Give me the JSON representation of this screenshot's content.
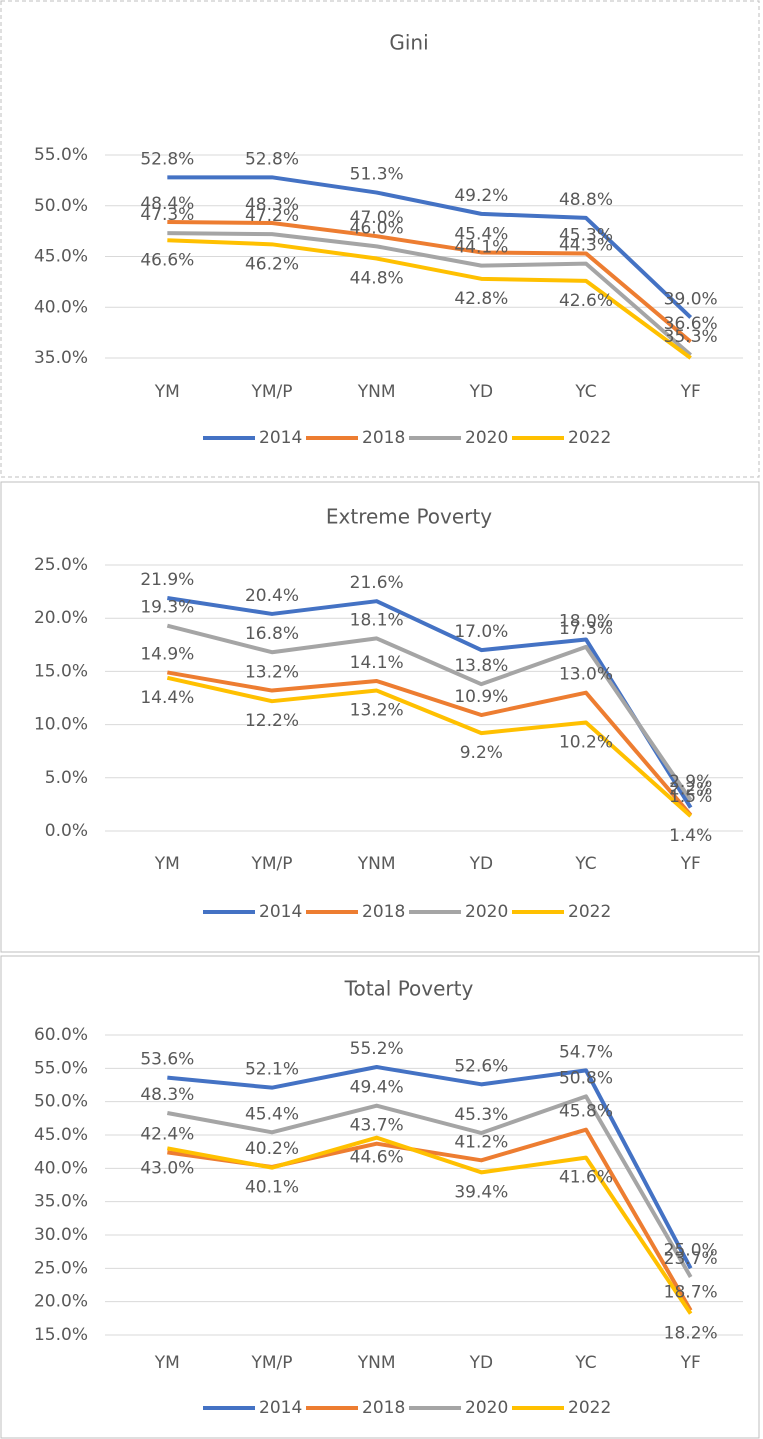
{
  "chart_data": [
    {
      "type": "line",
      "title": "Gini",
      "categories": [
        "YM",
        "YM/P",
        "YNM",
        "YD",
        "YC",
        "YF"
      ],
      "series": [
        {
          "name": "2014",
          "color": "#4472c4",
          "values": [
            52.8,
            52.8,
            51.3,
            49.2,
            48.8,
            39.0
          ],
          "value_labels": [
            "52.8%",
            "52.8%",
            "51.3%",
            "49.2%",
            "48.8%",
            "39.0%"
          ]
        },
        {
          "name": "2018",
          "color": "#ed7d31",
          "values": [
            48.4,
            48.3,
            47.0,
            45.4,
            45.3,
            36.6
          ],
          "value_labels": [
            "48.4%",
            "48.3%",
            "47.0%",
            "45.4%",
            "45.3%",
            "36.6%"
          ]
        },
        {
          "name": "2020",
          "color": "#a5a5a5",
          "values": [
            47.3,
            47.2,
            46.0,
            44.1,
            44.3,
            35.3
          ],
          "value_labels": [
            "47.3%",
            "47.2%",
            "46.0%",
            "44.1%",
            "44.3%",
            "35.3%"
          ]
        },
        {
          "name": "2022",
          "color": "#ffc000",
          "values": [
            46.6,
            46.2,
            44.8,
            42.8,
            42.6,
            35.0
          ],
          "value_labels": [
            "46.6%",
            "46.2%",
            "44.8%",
            "42.8%",
            "42.6%",
            null
          ]
        }
      ],
      "ylim": [
        35,
        55
      ],
      "yticks": [
        {
          "value": 35,
          "label": "35.0%"
        },
        {
          "value": 40,
          "label": "40.0%"
        },
        {
          "value": 45,
          "label": "45.0%"
        },
        {
          "value": 50,
          "label": "50.0%"
        },
        {
          "value": 55,
          "label": "55.0%"
        }
      ],
      "grid": true,
      "legend": "bottom"
    },
    {
      "type": "line",
      "title": "Extreme Poverty",
      "categories": [
        "YM",
        "YM/P",
        "YNM",
        "YD",
        "YC",
        "YF"
      ],
      "series": [
        {
          "name": "2014",
          "color": "#4472c4",
          "values": [
            21.9,
            20.4,
            21.6,
            17.0,
            18.0,
            2.2
          ],
          "value_labels": [
            "21.9%",
            "20.4%",
            "21.6%",
            "17.0%",
            "18.0%",
            "2.2%"
          ]
        },
        {
          "name": "2018",
          "color": "#ed7d31",
          "values": [
            14.9,
            13.2,
            14.1,
            10.9,
            13.0,
            1.5
          ],
          "value_labels": [
            "14.9%",
            "13.2%",
            "14.1%",
            "10.9%",
            "13.0%",
            "1.5%"
          ]
        },
        {
          "name": "2020",
          "color": "#a5a5a5",
          "values": [
            19.3,
            16.8,
            18.1,
            13.8,
            17.3,
            2.9
          ],
          "value_labels": [
            "19.3%",
            "16.8%",
            "18.1%",
            "13.8%",
            "17.3%",
            "2.9%"
          ]
        },
        {
          "name": "2022",
          "color": "#ffc000",
          "values": [
            14.4,
            12.2,
            13.2,
            9.2,
            10.2,
            1.4
          ],
          "value_labels": [
            "14.4%",
            "12.2%",
            "13.2%",
            "9.2%",
            "10.2%",
            "1.4%"
          ]
        }
      ],
      "ylim": [
        0,
        25
      ],
      "yticks": [
        {
          "value": 0,
          "label": "0.0%"
        },
        {
          "value": 5,
          "label": "5.0%"
        },
        {
          "value": 10,
          "label": "10.0%"
        },
        {
          "value": 15,
          "label": "15.0%"
        },
        {
          "value": 20,
          "label": "20.0%"
        },
        {
          "value": 25,
          "label": "25.0%"
        }
      ],
      "grid": true,
      "legend": "bottom"
    },
    {
      "type": "line",
      "title": "Total Poverty",
      "categories": [
        "YM",
        "YM/P",
        "YNM",
        "YD",
        "YC",
        "YF"
      ],
      "series": [
        {
          "name": "2014",
          "color": "#4472c4",
          "values": [
            53.6,
            52.1,
            55.2,
            52.6,
            54.7,
            25.0
          ],
          "value_labels": [
            "53.6%",
            "52.1%",
            "55.2%",
            "52.6%",
            "54.7%",
            "25.0%"
          ]
        },
        {
          "name": "2018",
          "color": "#ed7d31",
          "values": [
            42.4,
            40.2,
            43.7,
            41.2,
            45.8,
            18.7
          ],
          "value_labels": [
            "42.4%",
            "40.2%",
            "43.7%",
            "41.2%",
            "45.8%",
            "18.7%"
          ]
        },
        {
          "name": "2020",
          "color": "#a5a5a5",
          "values": [
            48.3,
            45.4,
            49.4,
            45.3,
            50.8,
            23.7
          ],
          "value_labels": [
            "48.3%",
            "45.4%",
            "49.4%",
            "45.3%",
            "50.8%",
            "23.7%"
          ]
        },
        {
          "name": "2022",
          "color": "#ffc000",
          "values": [
            43.0,
            40.1,
            44.6,
            39.4,
            41.6,
            18.2
          ],
          "value_labels": [
            "43.0%",
            "40.1%",
            "44.6%",
            "39.4%",
            "41.6%",
            "18.2%"
          ]
        }
      ],
      "ylim": [
        15,
        60
      ],
      "yticks": [
        {
          "value": 15,
          "label": "15.0%"
        },
        {
          "value": 20,
          "label": "20.0%"
        },
        {
          "value": 25,
          "label": "25.0%"
        },
        {
          "value": 30,
          "label": "30.0%"
        },
        {
          "value": 35,
          "label": "35.0%"
        },
        {
          "value": 40,
          "label": "40.0%"
        },
        {
          "value": 45,
          "label": "45.0%"
        },
        {
          "value": 50,
          "label": "50.0%"
        },
        {
          "value": 55,
          "label": "55.0%"
        },
        {
          "value": 60,
          "label": "60.0%"
        }
      ],
      "grid": true,
      "legend": "bottom"
    }
  ]
}
